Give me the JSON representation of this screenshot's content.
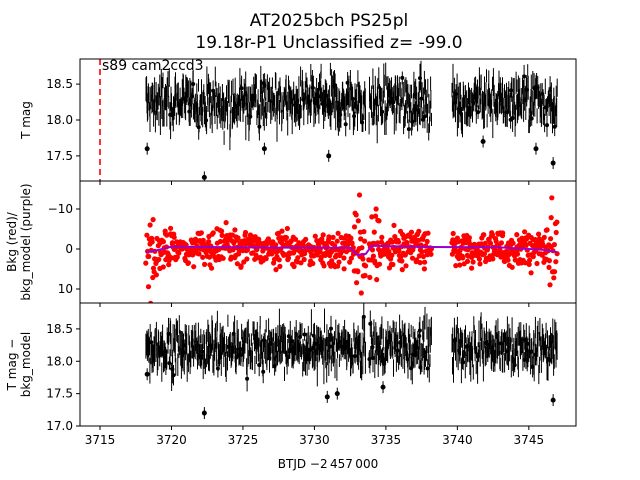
{
  "chart_data": {
    "type": "scatter",
    "title_line1": "AT2025bch  PS25pl",
    "title_line2": "19.18r-P1 Unclassified z= -99.0",
    "xlabel": "BTJD −2 457 000",
    "x_ticks": [
      3715,
      3720,
      3725,
      3730,
      3735,
      3740,
      3745
    ],
    "xlim": [
      3713.6,
      3748.3
    ],
    "marker_x": 3715,
    "marker_color": "#ff0000",
    "annotation": "s89 cam2ccd3",
    "segments": [
      [
        3718.2,
        3733.6
      ],
      [
        3733.8,
        3738.2
      ],
      [
        3739.6,
        3747.0
      ]
    ],
    "panels": [
      {
        "id": "top",
        "ylabel": [
          "T mag"
        ],
        "ylim": [
          18.85,
          17.15
        ],
        "inverted": true,
        "y_ticks": [
          "17.5",
          "18.0",
          "18.5"
        ],
        "y_tick_values": [
          17.5,
          18.0,
          18.5
        ],
        "series_color": "#000000",
        "center": 18.25,
        "spread": 0.35,
        "points": [
          [
            3722.3,
            17.2
          ],
          [
            3718.3,
            17.6
          ],
          [
            3726.5,
            17.6
          ],
          [
            3731.0,
            17.5
          ],
          [
            3745.5,
            17.6
          ],
          [
            3746.7,
            17.4
          ],
          [
            3741.8,
            17.7
          ]
        ]
      },
      {
        "id": "middle",
        "ylabel": [
          "Bkg (red)/",
          "bkg_model (purple)"
        ],
        "ylim": [
          -17.0,
          13.5
        ],
        "inverted": false,
        "y_ticks": [
          "10",
          "0",
          "−10"
        ],
        "y_tick_values": [
          10,
          0,
          -10
        ],
        "series_color": "#ff0000",
        "model_color": "#9900cc",
        "center": 0,
        "spread": 4.5,
        "model": [
          [
            3718.2,
            0.8
          ],
          [
            3719.0,
            0.3
          ],
          [
            3720.0,
            -0.6
          ],
          [
            3725.0,
            -0.4
          ],
          [
            3730.0,
            -0.3
          ],
          [
            3732.5,
            -0.3
          ],
          [
            3733.0,
            1.5
          ],
          [
            3733.6,
            1.2
          ],
          [
            3734.0,
            -0.8
          ],
          [
            3738.2,
            -0.5
          ],
          [
            3743.0,
            -0.4
          ],
          [
            3746.0,
            0.2
          ],
          [
            3747.0,
            0.8
          ]
        ]
      },
      {
        "id": "bottom",
        "ylabel": [
          "T mag −",
          "bkg_model"
        ],
        "ylim": [
          18.9,
          17.0
        ],
        "inverted": true,
        "y_ticks": [
          "17.0",
          "17.5",
          "18.0",
          "18.5"
        ],
        "y_tick_values": [
          17.0,
          17.5,
          18.0,
          18.5
        ],
        "series_color": "#000000",
        "center": 18.2,
        "spread": 0.35,
        "points": [
          [
            3722.3,
            17.2
          ],
          [
            3718.3,
            17.8
          ],
          [
            3730.9,
            17.45
          ],
          [
            3731.6,
            17.5
          ],
          [
            3746.7,
            17.4
          ],
          [
            3734.8,
            17.6
          ]
        ]
      }
    ]
  }
}
